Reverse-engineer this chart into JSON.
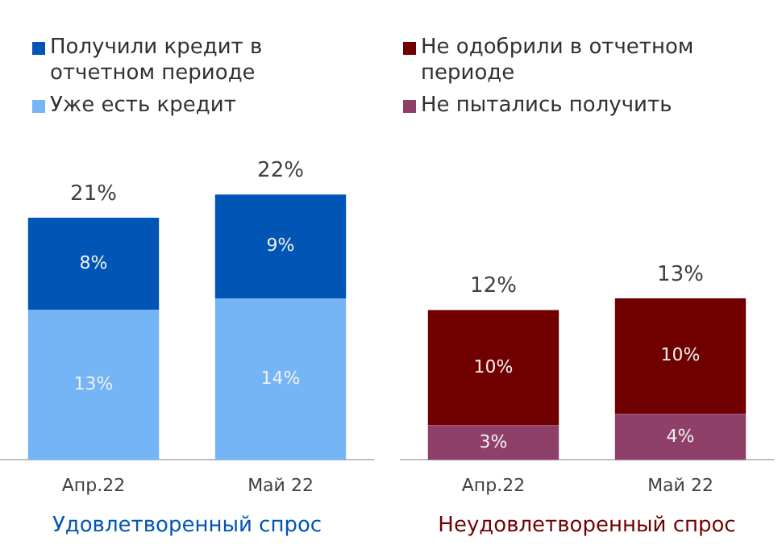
{
  "chart_data": [
    {
      "type": "bar",
      "stacked": true,
      "legend": "top",
      "xlabel": "Удовлетворенный спрос",
      "categories": [
        "Апр.22",
        "Май 22"
      ],
      "series": [
        {
          "name": "Уже есть кредит",
          "color": "#75b5f5",
          "values": [
            13,
            14
          ],
          "value_labels": [
            "13%",
            "14%"
          ]
        },
        {
          "name": "Получили кредит в отчетном периоде",
          "color": "#0055b5",
          "values": [
            8,
            9
          ],
          "value_labels": [
            "8%",
            "9%"
          ]
        }
      ],
      "totals": [
        "21%",
        "22%"
      ]
    },
    {
      "type": "bar",
      "stacked": true,
      "legend": "top",
      "xlabel": "Неудовлетворенный спрос",
      "categories": [
        "Апр.22",
        "Май 22"
      ],
      "series": [
        {
          "name": "Не пытались получить",
          "color": "#8f4068",
          "values": [
            3,
            4
          ],
          "value_labels": [
            "3%",
            "4%"
          ]
        },
        {
          "name": "Не одобрили в отчетном периоде",
          "color": "#700000",
          "values": [
            10,
            10
          ],
          "value_labels": [
            "10%",
            "10%"
          ]
        }
      ],
      "totals": [
        "12%",
        "13%"
      ]
    }
  ]
}
